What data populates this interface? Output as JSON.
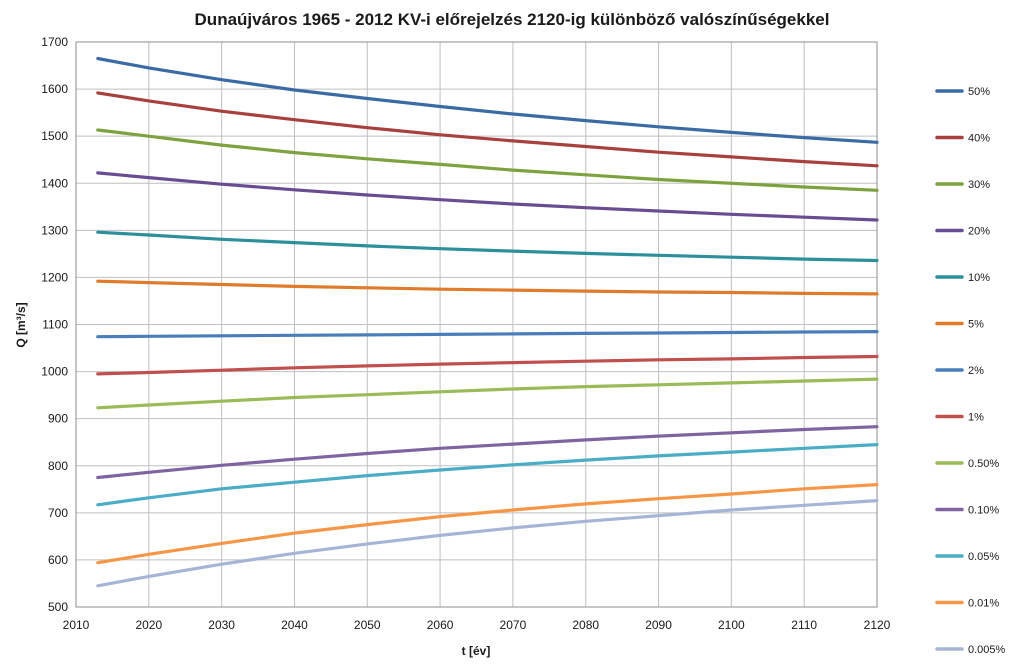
{
  "chart_data": {
    "type": "line",
    "title": "Dunaújváros 1965 - 2012 KV-i előrejelzés 2120-ig különböző valószínűségekkel",
    "xlabel": "t [év]",
    "ylabel": "Q [m³/s]",
    "xlim": [
      2010,
      2120
    ],
    "ylim": [
      500,
      1700
    ],
    "xticks": [
      2010,
      2020,
      2030,
      2040,
      2050,
      2060,
      2070,
      2080,
      2090,
      2100,
      2110,
      2120
    ],
    "yticks": [
      500,
      600,
      700,
      800,
      900,
      1000,
      1100,
      1200,
      1300,
      1400,
      1500,
      1600,
      1700
    ],
    "grid": true,
    "legend_position": "right",
    "x": [
      2013,
      2020,
      2030,
      2040,
      2050,
      2060,
      2070,
      2080,
      2090,
      2100,
      2110,
      2120
    ],
    "series": [
      {
        "name": "50%",
        "color": "#3b6ba5",
        "values": [
          1665,
          1645,
          1620,
          1598,
          1580,
          1563,
          1547,
          1533,
          1520,
          1508,
          1497,
          1487
        ]
      },
      {
        "name": "40%",
        "color": "#a8413e",
        "values": [
          1592,
          1575,
          1553,
          1535,
          1518,
          1503,
          1490,
          1478,
          1466,
          1456,
          1446,
          1437
        ]
      },
      {
        "name": "30%",
        "color": "#7ea23f",
        "values": [
          1513,
          1500,
          1481,
          1465,
          1452,
          1440,
          1428,
          1418,
          1408,
          1400,
          1392,
          1385
        ]
      },
      {
        "name": "20%",
        "color": "#6a4c93",
        "values": [
          1422,
          1412,
          1398,
          1386,
          1375,
          1365,
          1356,
          1348,
          1341,
          1334,
          1328,
          1322
        ]
      },
      {
        "name": "10%",
        "color": "#2d8f9b",
        "values": [
          1296,
          1290,
          1281,
          1274,
          1267,
          1261,
          1256,
          1251,
          1247,
          1243,
          1239,
          1236
        ]
      },
      {
        "name": "5%",
        "color": "#e07b2b",
        "values": [
          1192,
          1189,
          1185,
          1181,
          1178,
          1175,
          1173,
          1171,
          1169,
          1168,
          1166,
          1165
        ]
      },
      {
        "name": "2%",
        "color": "#4a7ebb",
        "values": [
          1074,
          1075,
          1076,
          1077,
          1078,
          1079,
          1080,
          1081,
          1082,
          1083,
          1084,
          1085
        ]
      },
      {
        "name": "1%",
        "color": "#c0504d",
        "values": [
          995,
          998,
          1003,
          1008,
          1012,
          1016,
          1019,
          1022,
          1025,
          1027,
          1030,
          1032
        ]
      },
      {
        "name": "0.50%",
        "color": "#9bbb59",
        "values": [
          923,
          929,
          937,
          945,
          951,
          957,
          963,
          968,
          972,
          976,
          980,
          984
        ]
      },
      {
        "name": "0.10%",
        "color": "#8064a2",
        "values": [
          775,
          786,
          801,
          814,
          826,
          837,
          846,
          855,
          863,
          870,
          877,
          883
        ]
      },
      {
        "name": "0.05%",
        "color": "#4bacc6",
        "values": [
          717,
          732,
          751,
          765,
          779,
          791,
          802,
          812,
          821,
          829,
          837,
          845
        ]
      },
      {
        "name": "0.01%",
        "color": "#f79646",
        "values": [
          594,
          612,
          635,
          657,
          675,
          692,
          706,
          719,
          730,
          740,
          751,
          760
        ]
      },
      {
        "name": "0.005%",
        "color": "#a6b5d6",
        "values": [
          545,
          565,
          591,
          614,
          634,
          652,
          668,
          682,
          694,
          706,
          716,
          726
        ]
      }
    ]
  }
}
